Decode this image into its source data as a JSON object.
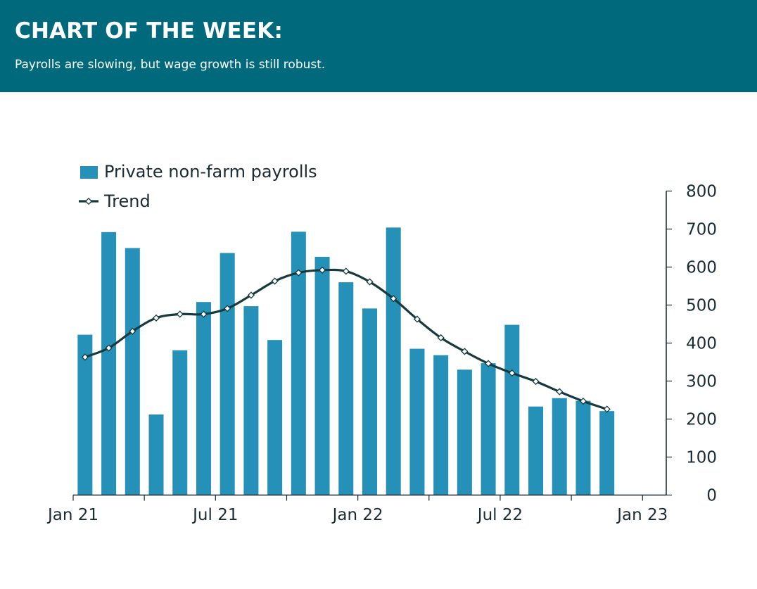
{
  "header": {
    "title": "CHART OF THE WEEK:",
    "subtitle": "Payrolls are slowing, but wage growth is still robust."
  },
  "colors": {
    "header_bg": "#006a7c",
    "bar": "#2591b8",
    "trend_line": "#163a3d",
    "axis": "#1b2b33"
  },
  "chart_data": {
    "type": "bar",
    "legend_position": "top-left",
    "grid": false,
    "y_axis_side": "right",
    "ylim": [
      0,
      800
    ],
    "y_ticks": [
      0,
      100,
      200,
      300,
      400,
      500,
      600,
      700,
      800
    ],
    "x_tick_labels": [
      "Jan 21",
      "Jul 21",
      "Jan 22",
      "Jul 22",
      "Jan 23"
    ],
    "categories": [
      "Jan 21",
      "Feb 21",
      "Mar 21",
      "Apr 21",
      "May 21",
      "Jun 21",
      "Jul 21",
      "Aug 21",
      "Sep 21",
      "Oct 21",
      "Nov 21",
      "Dec 21",
      "Jan 22",
      "Feb 22",
      "Mar 22",
      "Apr 22",
      "May 22",
      "Jun 22",
      "Jul 22",
      "Aug 22",
      "Sep 22",
      "Oct 22",
      "Nov 22"
    ],
    "series": [
      {
        "name": "Private non-farm payrolls",
        "kind": "bar",
        "values": [
          422,
          692,
          650,
          212,
          381,
          508,
          637,
          497,
          408,
          693,
          627,
          560,
          491,
          704,
          385,
          368,
          330,
          347,
          448,
          233,
          255,
          248,
          221
        ]
      },
      {
        "name": "Trend",
        "kind": "line",
        "values": [
          363,
          387,
          431,
          466,
          476,
          476,
          491,
          526,
          563,
          585,
          592,
          589,
          561,
          517,
          463,
          414,
          378,
          346,
          321,
          299,
          272,
          247,
          226
        ]
      }
    ]
  }
}
